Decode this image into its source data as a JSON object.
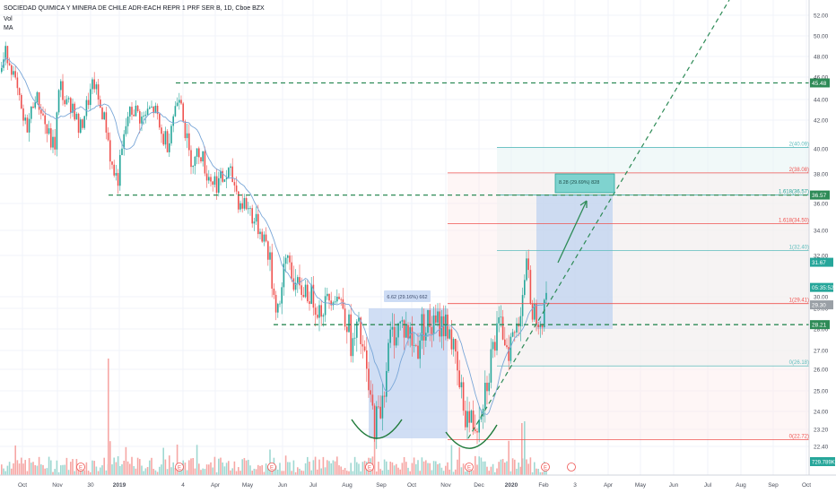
{
  "header": {
    "title": "SOCIEDAD QUIMICA Y MINERA DE CHILE ADR-EACH REPR 1 PRF SER B, 1D, Cboe BZX",
    "indicators": [
      "Vol",
      "MA"
    ]
  },
  "chart_data": {
    "type": "candlestick",
    "y_axis": {
      "range": [
        20.3,
        52.9
      ],
      "ticks": [
        "52.00",
        "50.00",
        "48.00",
        "46.00",
        "44.00",
        "42.00",
        "40.00",
        "38.00",
        "36.00",
        "34.00",
        "32.00",
        "30.00",
        "29.00",
        "28.00",
        "27.00",
        "26.00",
        "25.00",
        "24.00",
        "23.20",
        "22.40"
      ],
      "tick_values": [
        52,
        50,
        48,
        46,
        44,
        42,
        40,
        38,
        36,
        34,
        32,
        30,
        29,
        28,
        27,
        26,
        25,
        24,
        23.2,
        22.4
      ]
    },
    "x_axis": {
      "ticks": [
        "Oct",
        "Nov",
        "30",
        "2019",
        "4",
        "Apr",
        "May",
        "Jun",
        "Jul",
        "Aug",
        "Sep",
        "Oct",
        "Nov",
        "Dec",
        "2020",
        "Feb",
        "3",
        "Apr",
        "May",
        "Jun",
        "Jul",
        "Aug",
        "Sep",
        "Oct"
      ]
    },
    "price_path": [
      [
        0,
        46.5
      ],
      [
        6,
        48.5
      ],
      [
        12,
        47.0
      ],
      [
        20,
        44.0
      ],
      [
        26,
        41.5
      ],
      [
        32,
        42.0
      ],
      [
        38,
        44.5
      ],
      [
        45,
        43.0
      ],
      [
        52,
        41.0
      ],
      [
        60,
        40.0
      ],
      [
        66,
        45.5
      ],
      [
        72,
        43.5
      ],
      [
        80,
        43.5
      ],
      [
        88,
        41.0
      ],
      [
        96,
        43.5
      ],
      [
        104,
        45.5
      ],
      [
        110,
        43.5
      ],
      [
        118,
        41.5
      ],
      [
        124,
        38.5
      ],
      [
        130,
        37.5
      ],
      [
        136,
        40.0
      ],
      [
        142,
        42.5
      ],
      [
        150,
        43.0
      ],
      [
        158,
        42.0
      ],
      [
        166,
        43.0
      ],
      [
        172,
        43.0
      ],
      [
        178,
        41.0
      ],
      [
        186,
        40.5
      ],
      [
        194,
        43.0
      ],
      [
        200,
        45.0
      ],
      [
        205,
        41.5
      ],
      [
        210,
        39.5
      ],
      [
        216,
        39.0
      ],
      [
        222,
        40.0
      ],
      [
        230,
        38.0
      ],
      [
        238,
        37.5
      ],
      [
        246,
        37.5
      ],
      [
        254,
        38.0
      ],
      [
        260,
        37.5
      ],
      [
        266,
        36.0
      ],
      [
        272,
        36.0
      ],
      [
        278,
        35.5
      ],
      [
        284,
        34.5
      ],
      [
        290,
        34.0
      ],
      [
        296,
        33.0
      ],
      [
        302,
        31.0
      ],
      [
        308,
        29.0
      ],
      [
        314,
        30.5
      ],
      [
        320,
        32.0
      ],
      [
        326,
        31.0
      ],
      [
        332,
        30.0
      ],
      [
        338,
        30.5
      ],
      [
        344,
        30.0
      ],
      [
        350,
        29.5
      ],
      [
        356,
        29.0
      ],
      [
        362,
        29.5
      ],
      [
        368,
        30.0
      ],
      [
        374,
        30.2
      ],
      [
        380,
        29.5
      ],
      [
        386,
        28.5
      ],
      [
        392,
        27.0
      ],
      [
        398,
        28.0
      ],
      [
        404,
        27.0
      ],
      [
        410,
        25.0
      ],
      [
        416,
        23.5
      ],
      [
        422,
        23.8
      ],
      [
        428,
        25.5
      ],
      [
        434,
        27.5
      ],
      [
        440,
        28.0
      ],
      [
        446,
        28.2
      ],
      [
        452,
        28.0
      ],
      [
        458,
        27.5
      ],
      [
        464,
        27.0
      ],
      [
        470,
        28.2
      ],
      [
        476,
        28.3
      ],
      [
        482,
        28.0
      ],
      [
        488,
        28.3
      ],
      [
        494,
        28.2
      ],
      [
        500,
        28.2
      ],
      [
        506,
        26.5
      ],
      [
        512,
        25.0
      ],
      [
        518,
        24.0
      ],
      [
        524,
        23.5
      ],
      [
        530,
        23.5
      ],
      [
        536,
        24.5
      ],
      [
        542,
        25.5
      ],
      [
        548,
        27.0
      ],
      [
        554,
        27.8
      ],
      [
        560,
        28.0
      ],
      [
        566,
        27.2
      ],
      [
        572,
        27.6
      ],
      [
        578,
        28.5
      ],
      [
        582,
        30.5
      ],
      [
        586,
        31.4
      ],
      [
        590,
        30.0
      ],
      [
        594,
        28.8
      ],
      [
        598,
        29.0
      ],
      [
        602,
        28.6
      ],
      [
        606,
        29.0
      ],
      [
        610,
        31.67
      ]
    ],
    "last_price": 31.67,
    "countdown": "05:35:52",
    "last_volume": "729.789K",
    "horizontal_levels": [
      {
        "value": 45.48,
        "label": "45.48"
      },
      {
        "value": 36.57,
        "label": "36.57"
      },
      {
        "value": 28.21,
        "label": "28.21"
      }
    ],
    "fib_levels": [
      {
        "value": 40.09,
        "ratio": "2",
        "label": "2(40.09)",
        "color": "#5bbcbc"
      },
      {
        "value": 38.08,
        "ratio": "2",
        "label": "2(38.08)",
        "color": "#ef5350"
      },
      {
        "value": 36.57,
        "ratio": "1.618",
        "label": "1.618(36.57)",
        "color": "#26a69a"
      },
      {
        "value": 34.5,
        "ratio": "1.618",
        "label": "1.618(34.50)",
        "color": "#ef5350"
      },
      {
        "value": 32.4,
        "ratio": "1",
        "label": "1(32.40)",
        "color": "#5bbcbc"
      },
      {
        "value": 29.41,
        "ratio": "1",
        "label": "1(29.41)",
        "color": "#ef5350"
      },
      {
        "value": 26.18,
        "ratio": "0",
        "label": "0(26.18)",
        "color": "#5bbcbc"
      },
      {
        "value": 22.72,
        "ratio": "0",
        "label": "0(22.72)",
        "color": "#ef5350"
      }
    ],
    "badges": [
      {
        "value": 31.67,
        "label": "31.67",
        "color": "#26a69a"
      },
      {
        "value": 30.45,
        "label": "05:35:52",
        "color": "#26a69a"
      },
      {
        "value": 29.3,
        "label": "29.30",
        "color": "#9aa0a6"
      }
    ],
    "measure_boxes": [
      {
        "label": "6.62 (29.16%) 662"
      },
      {
        "label": "8.28 (29.69%) 828"
      }
    ],
    "colors": {
      "up": "#26a69a",
      "down": "#ef5350",
      "ma": "#7aa7d8",
      "dashed": "#2e8b57",
      "box": "#bcd0f0"
    }
  }
}
